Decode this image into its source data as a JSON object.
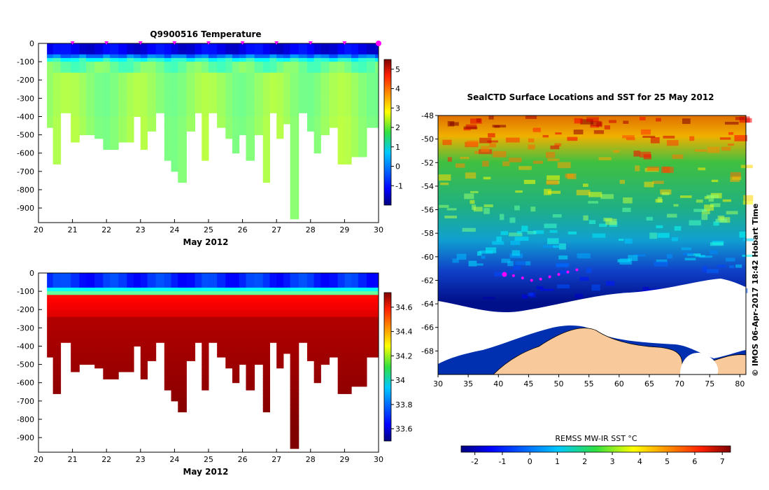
{
  "chart_data": [
    {
      "type": "heatmap",
      "name": "temperature-profile",
      "title": "Q9900516  Temperature",
      "xlabel": "May 2012",
      "ylabel": "",
      "xlim": [
        20,
        30
      ],
      "ylim": [
        -980,
        0
      ],
      "xticks": [
        "20",
        "21",
        "22",
        "23",
        "24",
        "25",
        "26",
        "27",
        "28",
        "29",
        "30"
      ],
      "yticks": [
        "0",
        "-100",
        "-200",
        "-300",
        "-400",
        "-500",
        "-600",
        "-700",
        "-800",
        "-900"
      ],
      "colorbar": {
        "min": -2,
        "max": 5.5,
        "ticks": [
          "-1",
          "0",
          "1",
          "2",
          "3",
          "4",
          "5"
        ]
      },
      "surface_markers_x": [
        21,
        22,
        23,
        24,
        25,
        26,
        27,
        28,
        29,
        30
      ],
      "profiles": {
        "day": [
          20.35,
          20.5,
          20.8,
          21.1,
          21.3,
          21.5,
          21.8,
          22.0,
          22.2,
          22.5,
          22.7,
          22.9,
          23.1,
          23.3,
          23.6,
          23.8,
          24.0,
          24.2,
          24.5,
          24.7,
          24.9,
          25.1,
          25.4,
          25.6,
          25.8,
          26.0,
          26.2,
          26.5,
          26.7,
          26.9,
          27.1,
          27.3,
          27.5,
          27.8,
          28.0,
          28.2,
          28.4,
          28.7,
          28.9,
          29.1,
          29.3,
          29.5,
          29.8,
          30.0
        ],
        "max_depth": [
          460,
          650,
          380,
          540,
          500,
          500,
          510,
          580,
          580,
          540,
          540,
          400,
          580,
          470,
          380,
          630,
          700,
          750,
          470,
          380,
          630,
          380,
          460,
          510,
          600,
          500,
          630,
          500,
          750,
          380,
          520,
          430,
          955,
          380,
          470,
          600,
          490,
          460,
          650,
          650,
          620,
          620,
          450,
          450
        ]
      }
    },
    {
      "type": "heatmap",
      "name": "salinity-profile",
      "title": "",
      "xlabel": "May 2012",
      "ylabel": "",
      "xlim": [
        20,
        30
      ],
      "ylim": [
        -980,
        0
      ],
      "xticks": [
        "20",
        "21",
        "22",
        "23",
        "24",
        "25",
        "26",
        "27",
        "28",
        "29",
        "30"
      ],
      "yticks": [
        "0",
        "-100",
        "-200",
        "-300",
        "-400",
        "-500",
        "-600",
        "-700",
        "-800",
        "-900"
      ],
      "colorbar": {
        "min": 33.5,
        "max": 34.72,
        "ticks": [
          "33.6",
          "33.8",
          "34",
          "34.2",
          "34.4",
          "34.6"
        ]
      }
    },
    {
      "type": "heatmap",
      "name": "sst-map",
      "title": "SealCTD Surface Locations and SST for 25 May 2012",
      "xlabel": "",
      "ylabel": "",
      "xlim": [
        30,
        81
      ],
      "ylim": [
        -70,
        -48
      ],
      "xticks": [
        "30",
        "35",
        "40",
        "45",
        "50",
        "55",
        "60",
        "65",
        "70",
        "75",
        "80"
      ],
      "yticks": [
        "-48",
        "-50",
        "-52",
        "-54",
        "-56",
        "-58",
        "-60",
        "-62",
        "-64",
        "-66",
        "-68"
      ],
      "colorbar": {
        "label": "REMSS MW-IR SST °C",
        "min": -2.5,
        "max": 7.3,
        "ticks": [
          "-2",
          "-1",
          "0",
          "1",
          "2",
          "3",
          "4",
          "5",
          "6",
          "7"
        ]
      },
      "track": {
        "lon": [
          41.0,
          42.5,
          44.0,
          45.5,
          47.0,
          48.5,
          50.0,
          51.5,
          53.0
        ],
        "lat": [
          -61.5,
          -61.6,
          -61.8,
          -62.0,
          -61.9,
          -61.7,
          -61.5,
          -61.3,
          -61.1
        ]
      },
      "credit": "© IMOS 06-Apr-2017 18:42 Hobart Time"
    }
  ],
  "colors": {
    "jet_low": "#00007f",
    "jet_high": "#7f0000",
    "land": "#f7c99b",
    "ice": "#ffffff",
    "marker": "#ff00ff"
  }
}
